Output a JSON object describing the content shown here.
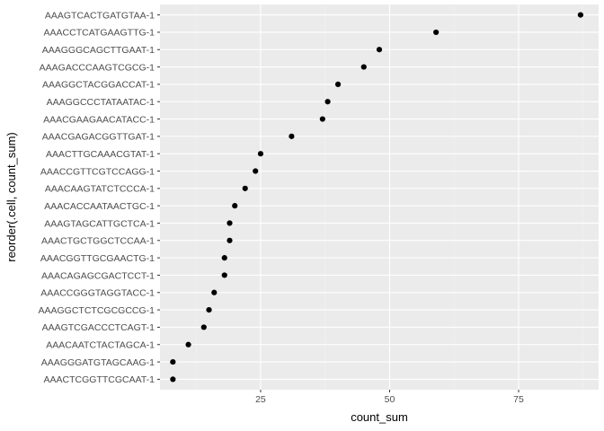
{
  "chart_data": {
    "type": "scatter",
    "xlabel": "count_sum",
    "ylabel": "reorder(.cell, count_sum)",
    "xlim": [
      5.5,
      90.5
    ],
    "xticks": [
      25,
      50,
      75
    ],
    "grid": true,
    "categories": [
      "AAACTCGGTTCGCAAT-1",
      "AAAGGGATGTAGCAAG-1",
      "AAACAATCTACTAGCA-1",
      "AAAGTCGACCCTCAGT-1",
      "AAAGGCTCTCGCGCCG-1",
      "AAACCGGGTAGGTACC-1",
      "AAACAGAGCGACTCCT-1",
      "AAACGGTTGCGAACTG-1",
      "AAACTGCTGGCTCCAA-1",
      "AAAGTAGCATTGCTCA-1",
      "AAACACCAATAACTGC-1",
      "AAACAAGTATCTCCCA-1",
      "AAACCGTTCGTCCAGG-1",
      "AAACTTGCAAACGTAT-1",
      "AAACGAGACGGTTGAT-1",
      "AAACGAAGAACATACC-1",
      "AAAGGCCCTATAATAC-1",
      "AAAGGCTACGGACCAT-1",
      "AAAGACCCAAGTCGCG-1",
      "AAAGGGCAGCTTGAAT-1",
      "AAACCTCATGAAGTTG-1",
      "AAAGTCACTGATGTAA-1"
    ],
    "values": [
      8,
      8,
      11,
      14,
      15,
      16,
      18,
      18,
      19,
      19,
      20,
      22,
      24,
      25,
      31,
      37,
      38,
      40,
      45,
      48,
      59,
      87
    ],
    "colors": {
      "panel": "#ebebeb",
      "grid_major": "#ffffff",
      "grid_minor": "#f2f2f2",
      "point": "#000000",
      "tick_text": "#4d4d4d",
      "tick_mark": "#333333"
    }
  }
}
